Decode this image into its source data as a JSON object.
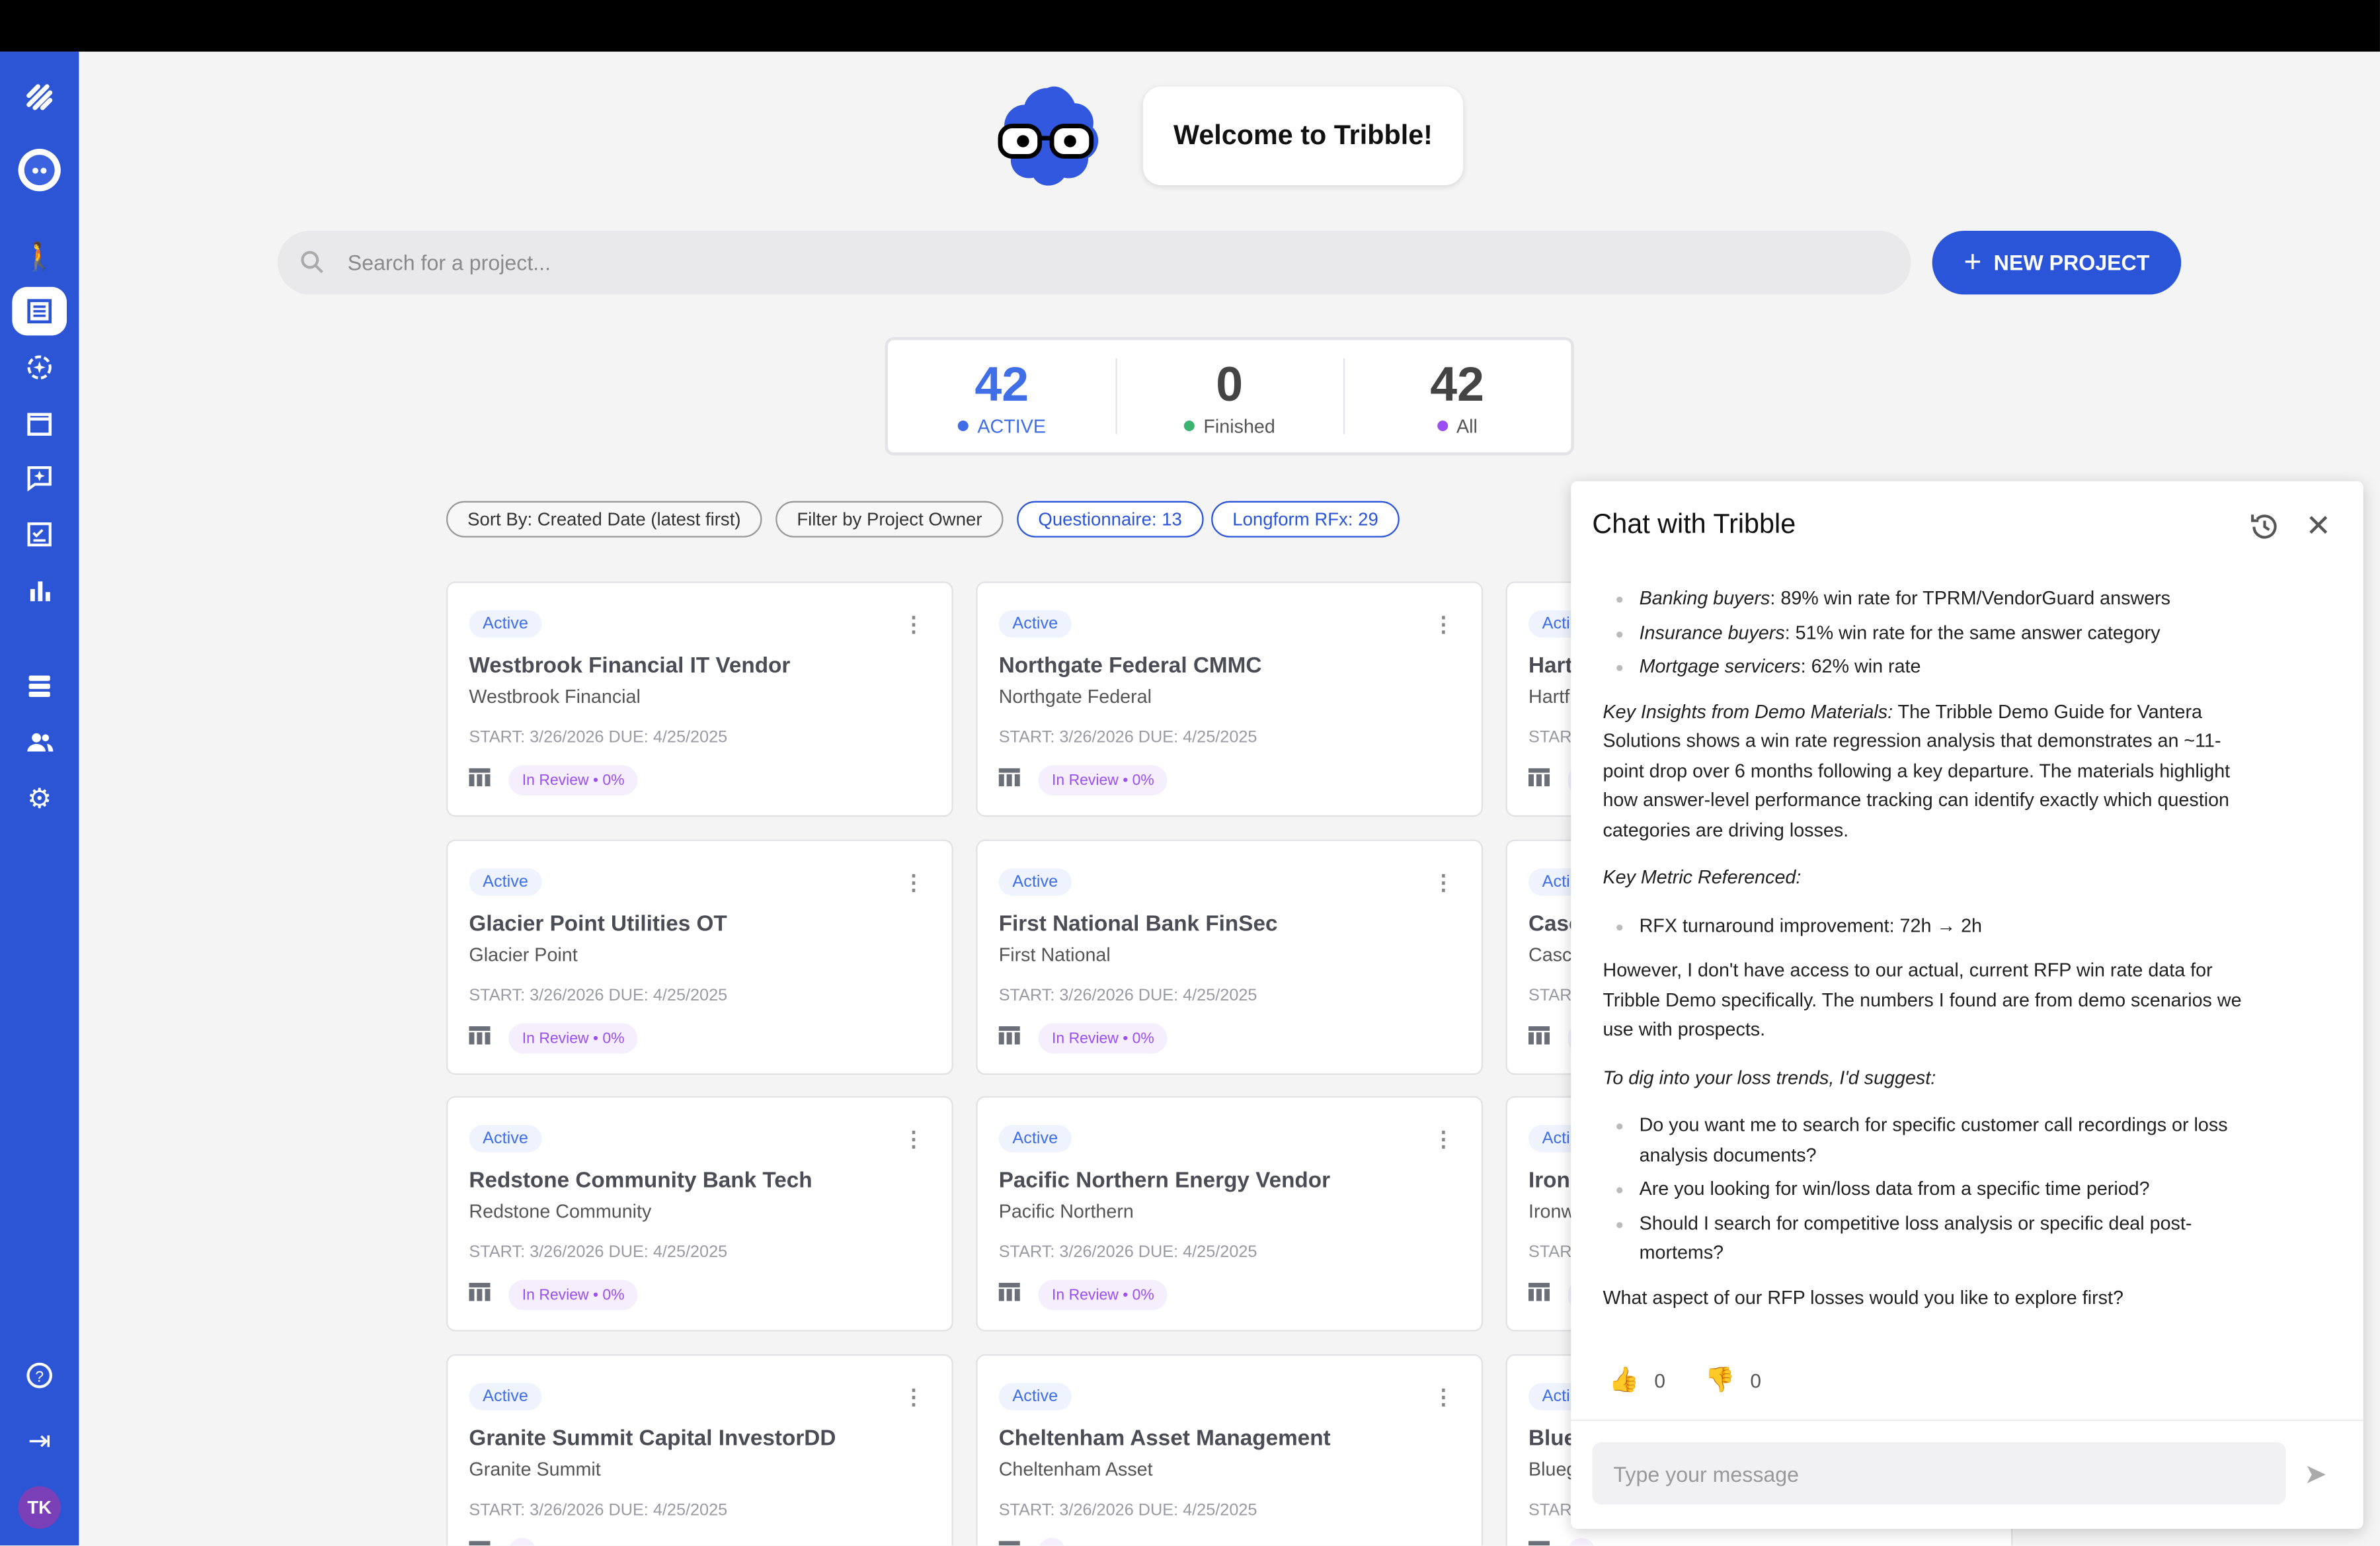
{
  "app": {
    "welcome": "Welcome to Tribble!",
    "accent": "#2b55d8"
  },
  "sidebar": {
    "items": [
      {
        "icon": "tribble-logo-icon"
      },
      {
        "icon": "tribble-mascot-icon"
      },
      {
        "icon": "person-transfer-icon"
      },
      {
        "icon": "projects-list-icon",
        "active": true
      },
      {
        "icon": "sparkle-refresh-icon"
      },
      {
        "icon": "calendar-icon"
      },
      {
        "icon": "chat-sparkle-icon"
      },
      {
        "icon": "checklist-icon"
      },
      {
        "icon": "bar-chart-icon"
      },
      {
        "icon": "database-icon"
      },
      {
        "icon": "users-icon"
      },
      {
        "icon": "gear-icon"
      },
      {
        "icon": "help-icon"
      },
      {
        "icon": "collapse-icon"
      }
    ],
    "user_initials": "TK"
  },
  "search": {
    "placeholder": "Search for a project...",
    "value": ""
  },
  "new_project_label": "NEW PROJECT",
  "stats": [
    {
      "value": "42",
      "label": "ACTIVE",
      "color": "#3f6ee6"
    },
    {
      "value": "0",
      "label": "Finished",
      "color": "#3cb371"
    },
    {
      "value": "42",
      "label": "All",
      "color": "#9b4ff0"
    }
  ],
  "filters": [
    "Sort By: Created Date (latest first)",
    "Filter by Project Owner",
    "Questionnaire: 13",
    "Longform RFx: 29"
  ],
  "cards": [
    {
      "status": "Active",
      "title": "Westbrook Financial IT Vendor",
      "client": "Westbrook Financial",
      "dates": "START: 3/26/2026  DUE: 4/25/2025",
      "progress": "In Review • 0%"
    },
    {
      "status": "Active",
      "title": "Northgate Federal CMMC",
      "client": "Northgate Federal",
      "dates": "START: 3/26/2026  DUE: 4/25/2025",
      "progress": "In Review • 0%"
    },
    {
      "status": "Acti",
      "title": "Hart",
      "client": "Hartf",
      "dates": "STAR",
      "progress": ""
    },
    {
      "status": "Active",
      "title": "Glacier Point Utilities OT",
      "client": "Glacier Point",
      "dates": "START: 3/26/2026  DUE: 4/25/2025",
      "progress": "In Review • 0%"
    },
    {
      "status": "Active",
      "title": "First National Bank FinSec",
      "client": "First National",
      "dates": "START: 3/26/2026  DUE: 4/25/2025",
      "progress": "In Review • 0%"
    },
    {
      "status": "Acti",
      "title": "Casc",
      "client": "Casc",
      "dates": "STAR",
      "progress": ""
    },
    {
      "status": "Active",
      "title": "Redstone Community Bank Tech",
      "client": "Redstone Community",
      "dates": "START: 3/26/2026  DUE: 4/25/2025",
      "progress": "In Review • 0%"
    },
    {
      "status": "Active",
      "title": "Pacific Northern Energy Vendor",
      "client": "Pacific Northern",
      "dates": "START: 3/26/2026  DUE: 4/25/2025",
      "progress": "In Review • 0%"
    },
    {
      "status": "Acti",
      "title": "Iron",
      "client": "Ironw",
      "dates": "STAR",
      "progress": ""
    },
    {
      "status": "Active",
      "title": "Granite Summit Capital InvestorDD",
      "client": "Granite Summit",
      "dates": "START: 3/26/2026  DUE: 4/25/2025",
      "progress": ""
    },
    {
      "status": "Active",
      "title": "Cheltenham Asset Management",
      "client": "Cheltenham Asset",
      "dates": "START: 3/26/2026  DUE: 4/25/2025",
      "progress": ""
    },
    {
      "status": "Acti",
      "title": "Blue",
      "client": "Blueg",
      "dates": "STAR",
      "progress": ""
    }
  ],
  "chat": {
    "title": "Chat with Tribble",
    "bullets1": [
      {
        "em": "Banking buyers",
        "text": ": 89% win rate for TPRM/VendorGuard answers"
      },
      {
        "em": "Insurance buyers",
        "text": ": 51% win rate for the same answer category"
      },
      {
        "em": "Mortgage servicers",
        "text": ": 62% win rate"
      }
    ],
    "insights_em": "Key Insights from Demo Materials:",
    "insights_text": " The Tribble Demo Guide for Vantera Solutions shows a win rate regression analysis that demonstrates an ~11-point drop over 6 months following a key departure. The materials highlight how answer-level performance tracking can identify exactly which question categories are driving losses.",
    "metric_heading": "Key Metric Referenced:",
    "metric_bullet": "RFX turnaround improvement: 72h → 2h",
    "however": "However, I don't have access to our actual, current RFP win rate data for Tribble Demo specifically. The numbers I found are from demo scenarios we use with prospects.",
    "suggest_heading": "To dig into your loss trends, I'd suggest:",
    "suggestions": [
      "Do you want me to search for specific customer call recordings or loss analysis documents?",
      "Are you looking for win/loss data from a specific time period?",
      "Should I search for competitive loss analysis or specific deal post-mortems?"
    ],
    "closing": "What aspect of our RFP losses would you like to explore first?",
    "thumbs_up": "0",
    "thumbs_down": "0",
    "input_placeholder": "Type your message"
  }
}
